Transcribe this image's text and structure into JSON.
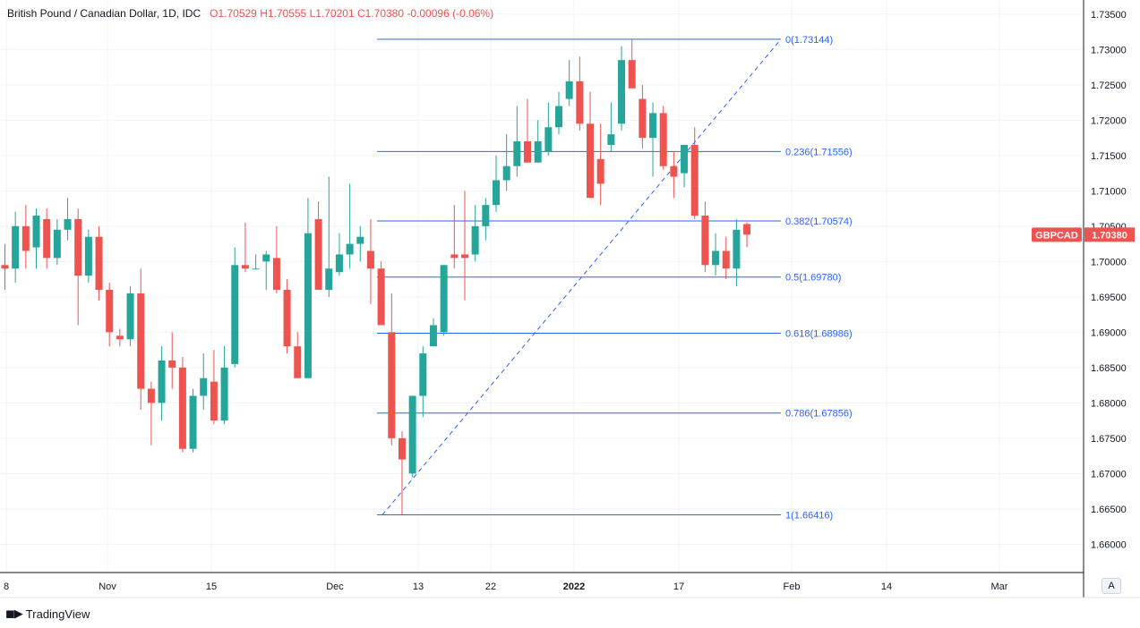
{
  "legend": {
    "symbol": "British Pound / Canadian Dollar, 1D, IDC",
    "open": "O1.70529",
    "high": "H1.70555",
    "low": "L1.70201",
    "close": "C1.70380",
    "change": "-0.00096 (-0.06%)"
  },
  "price_tag": {
    "ticker": "GBPCAD",
    "price": "1.70380"
  },
  "brand": {
    "name": "TradingView",
    "logo": "tv-logo-icon"
  },
  "scale_mode_label": "A",
  "colors": {
    "up": "#26a69a",
    "down": "#ef5350",
    "fib": "#2962ff",
    "grid": "#f0f3fa",
    "axis_text": "#131722"
  },
  "chart_data": {
    "type": "candlestick",
    "title": "British Pound / Canadian Dollar, 1D, IDC",
    "ylim": [
      1.656,
      1.737
    ],
    "y_ticks": [
      "1.73500",
      "1.73000",
      "1.72500",
      "1.72000",
      "1.71500",
      "1.71000",
      "1.70500",
      "1.70000",
      "1.69500",
      "1.69000",
      "1.68500",
      "1.68000",
      "1.67500",
      "1.67000",
      "1.66500",
      "1.66000"
    ],
    "x_tick_labels": [
      "8",
      "Nov",
      "15",
      "Dec",
      "13",
      "22",
      "2022",
      "17",
      "Feb",
      "14",
      "Mar"
    ],
    "grid": true,
    "fibonacci": {
      "high": 1.73144,
      "low": 1.66416,
      "levels": [
        {
          "label": "0(1.73144)",
          "value": 1.73144
        },
        {
          "label": "0.236(1.71556)",
          "value": 1.71556
        },
        {
          "label": "0.382(1.70574)",
          "value": 1.70574
        },
        {
          "label": "0.5(1.69780)",
          "value": 1.6978
        },
        {
          "label": "0.618(1.68986)",
          "value": 1.68986
        },
        {
          "label": "0.786(1.67856)",
          "value": 1.67856
        },
        {
          "label": "1(1.66416)",
          "value": 1.66416
        }
      ]
    },
    "candles": [
      {
        "o": 1.6995,
        "h": 1.7025,
        "l": 1.696,
        "c": 1.699
      },
      {
        "o": 1.699,
        "h": 1.707,
        "l": 1.697,
        "c": 1.705
      },
      {
        "o": 1.705,
        "h": 1.708,
        "l": 1.699,
        "c": 1.7015
      },
      {
        "o": 1.702,
        "h": 1.7075,
        "l": 1.699,
        "c": 1.7065
      },
      {
        "o": 1.706,
        "h": 1.7075,
        "l": 1.699,
        "c": 1.7005
      },
      {
        "o": 1.7005,
        "h": 1.706,
        "l": 1.6995,
        "c": 1.7045
      },
      {
        "o": 1.7045,
        "h": 1.709,
        "l": 1.703,
        "c": 1.706
      },
      {
        "o": 1.706,
        "h": 1.7075,
        "l": 1.691,
        "c": 1.698
      },
      {
        "o": 1.698,
        "h": 1.7045,
        "l": 1.697,
        "c": 1.7035
      },
      {
        "o": 1.7035,
        "h": 1.705,
        "l": 1.6945,
        "c": 1.696
      },
      {
        "o": 1.696,
        "h": 1.697,
        "l": 1.688,
        "c": 1.69
      },
      {
        "o": 1.6895,
        "h": 1.6905,
        "l": 1.688,
        "c": 1.689
      },
      {
        "o": 1.689,
        "h": 1.6965,
        "l": 1.688,
        "c": 1.6955
      },
      {
        "o": 1.6955,
        "h": 1.699,
        "l": 1.679,
        "c": 1.682
      },
      {
        "o": 1.682,
        "h": 1.683,
        "l": 1.674,
        "c": 1.68
      },
      {
        "o": 1.68,
        "h": 1.688,
        "l": 1.6775,
        "c": 1.686
      },
      {
        "o": 1.686,
        "h": 1.69,
        "l": 1.682,
        "c": 1.685
      },
      {
        "o": 1.685,
        "h": 1.6865,
        "l": 1.673,
        "c": 1.6735
      },
      {
        "o": 1.6735,
        "h": 1.682,
        "l": 1.673,
        "c": 1.681
      },
      {
        "o": 1.681,
        "h": 1.687,
        "l": 1.679,
        "c": 1.6835
      },
      {
        "o": 1.683,
        "h": 1.6875,
        "l": 1.677,
        "c": 1.6775
      },
      {
        "o": 1.6775,
        "h": 1.688,
        "l": 1.677,
        "c": 1.685
      },
      {
        "o": 1.6855,
        "h": 1.702,
        "l": 1.685,
        "c": 1.6995
      },
      {
        "o": 1.6995,
        "h": 1.7055,
        "l": 1.6985,
        "c": 1.699
      },
      {
        "o": 1.699,
        "h": 1.701,
        "l": 1.699,
        "c": 1.699
      },
      {
        "o": 1.7,
        "h": 1.7015,
        "l": 1.696,
        "c": 1.701
      },
      {
        "o": 1.7005,
        "h": 1.705,
        "l": 1.6955,
        "c": 1.696
      },
      {
        "o": 1.696,
        "h": 1.6975,
        "l": 1.687,
        "c": 1.688
      },
      {
        "o": 1.688,
        "h": 1.69,
        "l": 1.6835,
        "c": 1.6835
      },
      {
        "o": 1.6835,
        "h": 1.709,
        "l": 1.6835,
        "c": 1.704
      },
      {
        "o": 1.706,
        "h": 1.7085,
        "l": 1.696,
        "c": 1.696
      },
      {
        "o": 1.696,
        "h": 1.712,
        "l": 1.695,
        "c": 1.699
      },
      {
        "o": 1.6985,
        "h": 1.704,
        "l": 1.698,
        "c": 1.701
      },
      {
        "o": 1.701,
        "h": 1.711,
        "l": 1.699,
        "c": 1.7025
      },
      {
        "o": 1.7025,
        "h": 1.705,
        "l": 1.7,
        "c": 1.7035
      },
      {
        "o": 1.7015,
        "h": 1.706,
        "l": 1.694,
        "c": 1.699
      },
      {
        "o": 1.699,
        "h": 1.7,
        "l": 1.691,
        "c": 1.691
      },
      {
        "o": 1.69,
        "h": 1.6955,
        "l": 1.674,
        "c": 1.675
      },
      {
        "o": 1.675,
        "h": 1.676,
        "l": 1.6642,
        "c": 1.672
      },
      {
        "o": 1.67,
        "h": 1.681,
        "l": 1.6695,
        "c": 1.681
      },
      {
        "o": 1.681,
        "h": 1.688,
        "l": 1.678,
        "c": 1.687
      },
      {
        "o": 1.688,
        "h": 1.692,
        "l": 1.688,
        "c": 1.691
      },
      {
        "o": 1.69,
        "h": 1.6995,
        "l": 1.6895,
        "c": 1.6995
      },
      {
        "o": 1.701,
        "h": 1.708,
        "l": 1.699,
        "c": 1.7005
      },
      {
        "o": 1.701,
        "h": 1.71,
        "l": 1.6945,
        "c": 1.7005
      },
      {
        "o": 1.701,
        "h": 1.708,
        "l": 1.7,
        "c": 1.705
      },
      {
        "o": 1.705,
        "h": 1.709,
        "l": 1.703,
        "c": 1.708
      },
      {
        "o": 1.708,
        "h": 1.715,
        "l": 1.707,
        "c": 1.7115
      },
      {
        "o": 1.7115,
        "h": 1.718,
        "l": 1.71,
        "c": 1.7135
      },
      {
        "o": 1.7135,
        "h": 1.722,
        "l": 1.712,
        "c": 1.717
      },
      {
        "o": 1.717,
        "h": 1.723,
        "l": 1.714,
        "c": 1.714
      },
      {
        "o": 1.714,
        "h": 1.72,
        "l": 1.714,
        "c": 1.717
      },
      {
        "o": 1.7155,
        "h": 1.7225,
        "l": 1.715,
        "c": 1.719
      },
      {
        "o": 1.719,
        "h": 1.724,
        "l": 1.718,
        "c": 1.722
      },
      {
        "o": 1.723,
        "h": 1.7285,
        "l": 1.722,
        "c": 1.7255
      },
      {
        "o": 1.7255,
        "h": 1.729,
        "l": 1.7185,
        "c": 1.7195
      },
      {
        "o": 1.7195,
        "h": 1.724,
        "l": 1.709,
        "c": 1.709
      },
      {
        "o": 1.7145,
        "h": 1.7195,
        "l": 1.708,
        "c": 1.711
      },
      {
        "o": 1.7165,
        "h": 1.7225,
        "l": 1.7155,
        "c": 1.718
      },
      {
        "o": 1.7195,
        "h": 1.7305,
        "l": 1.7185,
        "c": 1.7285
      },
      {
        "o": 1.7285,
        "h": 1.7315,
        "l": 1.7245,
        "c": 1.7245
      },
      {
        "o": 1.723,
        "h": 1.725,
        "l": 1.716,
        "c": 1.7175
      },
      {
        "o": 1.7175,
        "h": 1.7225,
        "l": 1.712,
        "c": 1.721
      },
      {
        "o": 1.721,
        "h": 1.722,
        "l": 1.713,
        "c": 1.7135
      },
      {
        "o": 1.7135,
        "h": 1.7155,
        "l": 1.709,
        "c": 1.712
      },
      {
        "o": 1.7125,
        "h": 1.7165,
        "l": 1.7105,
        "c": 1.7165
      },
      {
        "o": 1.7165,
        "h": 1.719,
        "l": 1.706,
        "c": 1.7065
      },
      {
        "o": 1.7065,
        "h": 1.7085,
        "l": 1.6985,
        "c": 1.6995
      },
      {
        "o": 1.6995,
        "h": 1.704,
        "l": 1.698,
        "c": 1.7015
      },
      {
        "o": 1.7015,
        "h": 1.7035,
        "l": 1.6975,
        "c": 1.699
      },
      {
        "o": 1.699,
        "h": 1.706,
        "l": 1.6965,
        "c": 1.7045
      },
      {
        "o": 1.7053,
        "h": 1.70555,
        "l": 1.70201,
        "c": 1.7038
      }
    ]
  }
}
